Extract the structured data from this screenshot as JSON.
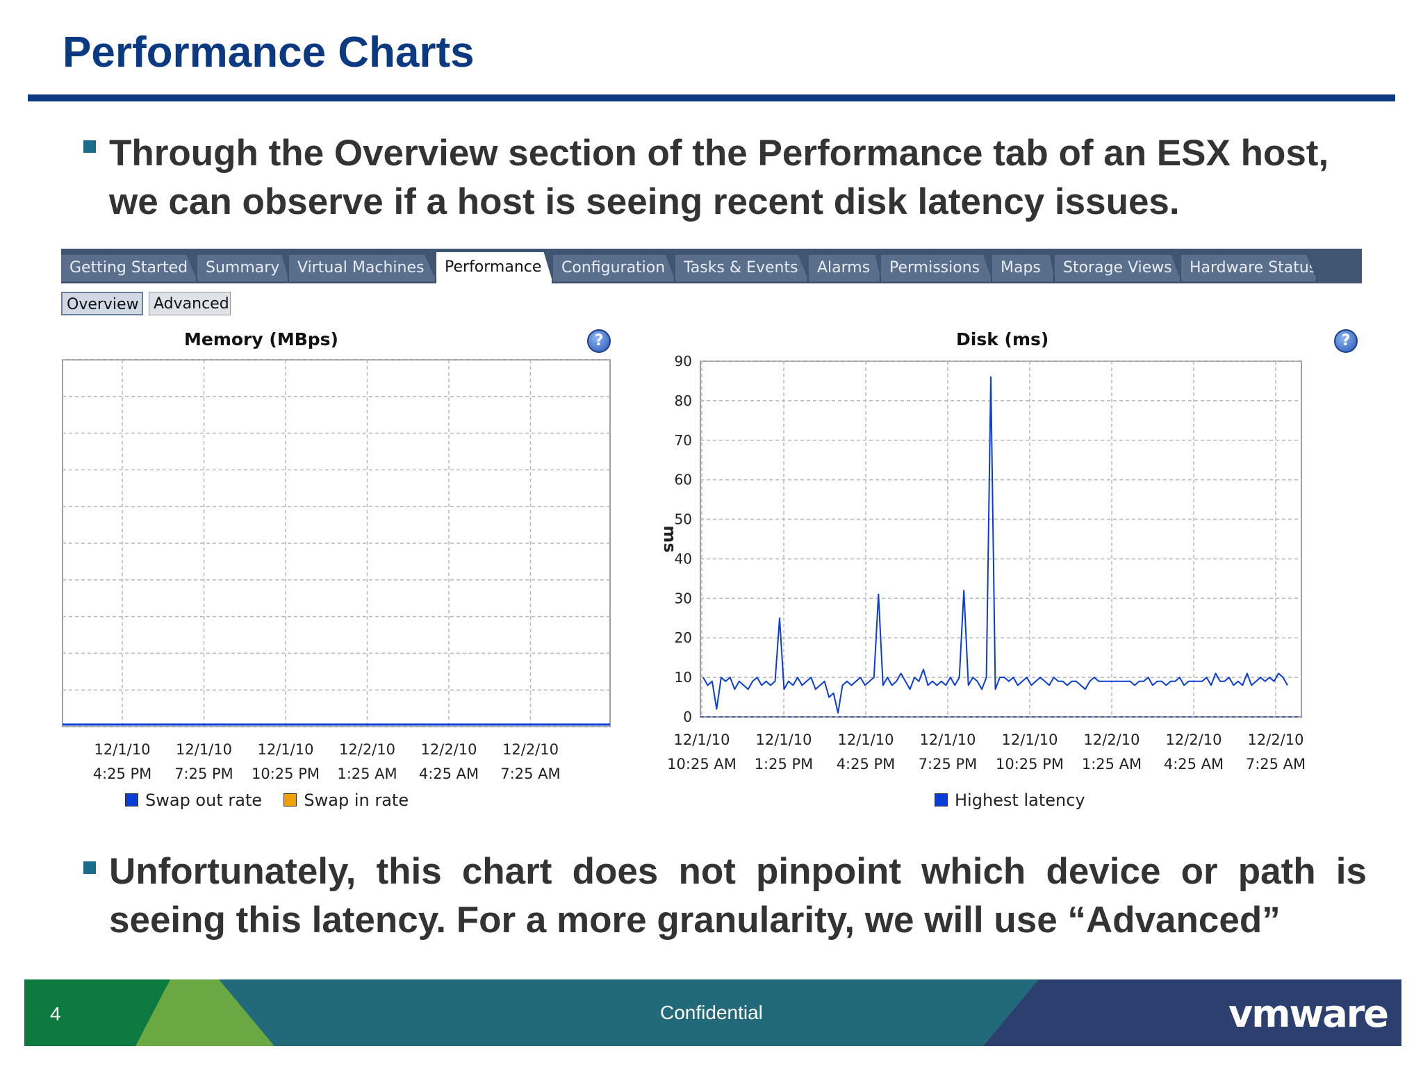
{
  "slide": {
    "title": "Performance Charts",
    "bullet1": "Through the Overview section of the Performance tab of an ESX host, we can observe if a host is seeing recent disk latency issues.",
    "bullet2": "Unfortunately, this chart does not pinpoint which device or path is seeing this latency. For a more granularity, we will use “Advanced”",
    "page_number": "4",
    "footer_text": "Confidential",
    "logo_text": "vmware"
  },
  "tabs": [
    {
      "label": "Getting Started",
      "active": false
    },
    {
      "label": "Summary",
      "active": false
    },
    {
      "label": "Virtual Machines",
      "active": false
    },
    {
      "label": "Performance",
      "active": true
    },
    {
      "label": "Configuration",
      "active": false
    },
    {
      "label": "Tasks & Events",
      "active": false
    },
    {
      "label": "Alarms",
      "active": false
    },
    {
      "label": "Permissions",
      "active": false
    },
    {
      "label": "Maps",
      "active": false
    },
    {
      "label": "Storage Views",
      "active": false
    },
    {
      "label": "Hardware Status",
      "active": false
    }
  ],
  "subtabs": [
    {
      "label": "Overview",
      "active": true
    },
    {
      "label": "Advanced",
      "active": false
    }
  ],
  "help_glyph": "?",
  "colors": {
    "title": "#0b3a82",
    "series_blue": "#0a3cd6",
    "swap_in": "#f0a000"
  },
  "chart_data": [
    {
      "type": "line",
      "title": "Memory (MBps)",
      "x_ticks": [
        [
          "12/1/10",
          "4:25 PM"
        ],
        [
          "12/1/10",
          "7:25 PM"
        ],
        [
          "12/1/10",
          "10:25 PM"
        ],
        [
          "12/2/10",
          "1:25 AM"
        ],
        [
          "12/2/10",
          "4:25 AM"
        ],
        [
          "12/2/10",
          "7:25 AM"
        ]
      ],
      "series": [
        {
          "name": "Swap out rate",
          "color": "#0a3cd6",
          "values": [
            0,
            0
          ]
        },
        {
          "name": "Swap in rate",
          "color": "#f0a000",
          "values": []
        }
      ],
      "grid": true,
      "legend": "bottom"
    },
    {
      "type": "line",
      "title": "Disk (ms)",
      "ylabel": "ms",
      "ylim": [
        0,
        90
      ],
      "yticks": [
        0,
        10,
        20,
        30,
        40,
        50,
        60,
        70,
        80,
        90
      ],
      "x_ticks": [
        [
          "12/1/10",
          "10:25 AM"
        ],
        [
          "12/1/10",
          "1:25 PM"
        ],
        [
          "12/1/10",
          "4:25 PM"
        ],
        [
          "12/1/10",
          "7:25 PM"
        ],
        [
          "12/1/10",
          "10:25 PM"
        ],
        [
          "12/2/10",
          "1:25 AM"
        ],
        [
          "12/2/10",
          "4:25 AM"
        ],
        [
          "12/2/10",
          "7:25 AM"
        ]
      ],
      "series": [
        {
          "name": "Highest latency",
          "color": "#0a3cd6",
          "values": [
            10,
            8,
            9,
            2,
            10,
            9,
            10,
            7,
            9,
            8,
            7,
            9,
            10,
            8,
            9,
            8,
            9,
            25,
            7,
            9,
            8,
            10,
            8,
            9,
            10,
            7,
            8,
            9,
            5,
            6,
            1,
            8,
            9,
            8,
            9,
            10,
            8,
            9,
            10,
            31,
            8,
            10,
            8,
            9,
            11,
            9,
            7,
            10,
            9,
            12,
            8,
            9,
            8,
            9,
            8,
            10,
            8,
            10,
            32,
            8,
            10,
            9,
            7,
            10,
            86,
            7,
            10,
            10,
            9,
            10,
            8,
            9,
            10,
            8,
            9,
            10,
            9,
            8,
            10,
            9,
            9,
            8,
            9,
            9,
            8,
            7,
            9,
            10,
            9,
            9,
            9,
            9,
            9,
            9,
            9,
            9,
            8,
            9,
            9,
            10,
            8,
            9,
            9,
            8,
            9,
            9,
            10,
            8,
            9,
            9,
            9,
            9,
            10,
            8,
            11,
            9,
            9,
            10,
            8,
            9,
            8,
            11,
            8,
            9,
            10,
            9,
            10,
            9,
            11,
            10,
            8
          ]
        }
      ],
      "grid": true,
      "legend": "bottom"
    }
  ]
}
